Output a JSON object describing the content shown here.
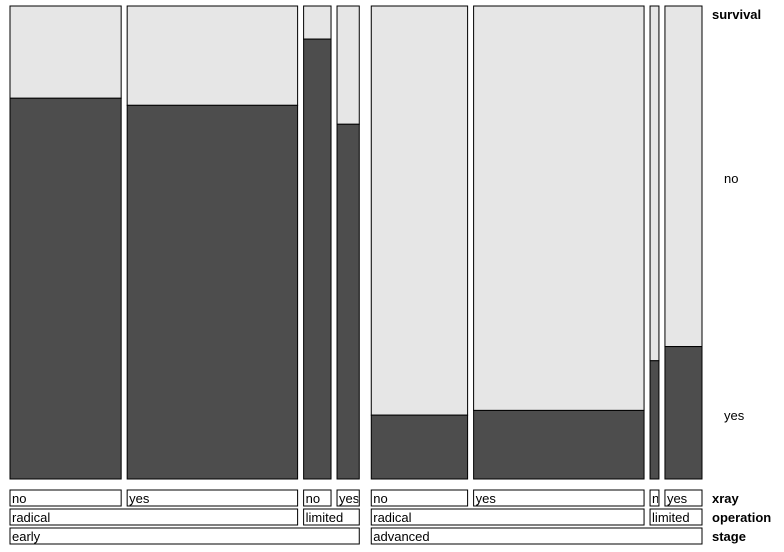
{
  "chart_data": {
    "type": "mosaic",
    "response": {
      "name": "survival",
      "levels": [
        "no",
        "yes"
      ],
      "level_colors": {
        "no": "#e6e6e6",
        "yes": "#4d4d4d"
      }
    },
    "factors": [
      {
        "name": "xray",
        "levels": [
          "no",
          "yes"
        ]
      },
      {
        "name": "operation",
        "levels": [
          "radical",
          "limited"
        ]
      },
      {
        "name": "stage",
        "levels": [
          "early",
          "advanced"
        ]
      }
    ],
    "cells": [
      {
        "stage": "early",
        "operation": "radical",
        "xray": "no",
        "xray_label": "no",
        "share": 0.15,
        "prop_yes": 0.805
      },
      {
        "stage": "early",
        "operation": "radical",
        "xray": "yes",
        "xray_label": "yes",
        "share": 0.23,
        "prop_yes": 0.79
      },
      {
        "stage": "early",
        "operation": "limited",
        "xray": "no",
        "xray_label": "no",
        "share": 0.037,
        "prop_yes": 0.93
      },
      {
        "stage": "early",
        "operation": "limited",
        "xray": "yes",
        "xray_label": "yes",
        "share": 0.03,
        "prop_yes": 0.75
      },
      {
        "stage": "advanced",
        "operation": "radical",
        "xray": "no",
        "xray_label": "no",
        "share": 0.13,
        "prop_yes": 0.135
      },
      {
        "stage": "advanced",
        "operation": "radical",
        "xray": "yes",
        "xray_label": "yes",
        "share": 0.23,
        "prop_yes": 0.145
      },
      {
        "stage": "advanced",
        "operation": "limited",
        "xray": "no",
        "xray_label": "n",
        "share": 0.012,
        "prop_yes": 0.25
      },
      {
        "stage": "advanced",
        "operation": "limited",
        "xray": "yes",
        "xray_label": "yes",
        "share": 0.05,
        "prop_yes": 0.28
      }
    ],
    "operation_labels": [
      {
        "stage": "early",
        "operation": "radical",
        "label": "radical"
      },
      {
        "stage": "early",
        "operation": "limited",
        "label": "limited"
      },
      {
        "stage": "advanced",
        "operation": "radical",
        "label": "radical"
      },
      {
        "stage": "advanced",
        "operation": "limited",
        "label": "limited"
      }
    ],
    "stage_labels": [
      {
        "stage": "early",
        "label": "early"
      },
      {
        "stage": "advanced",
        "label": "advanced"
      }
    ],
    "right_labels": {
      "response_title": "survival",
      "no": "no",
      "yes": "yes",
      "xray": "xray",
      "operation": "operation",
      "stage": "stage"
    }
  }
}
